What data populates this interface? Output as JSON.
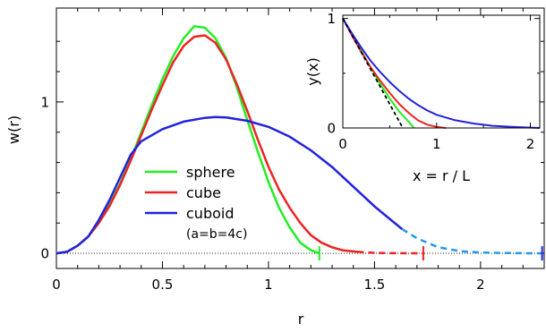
{
  "chart_data": [
    {
      "type": "line",
      "title": "",
      "xlabel": "r",
      "ylabel": "w(r)",
      "xlim": [
        0,
        2.3
      ],
      "ylim": [
        -0.1,
        1.62
      ],
      "x_ticks": [
        0,
        0.5,
        1,
        1.5,
        2
      ],
      "x_tick_labels": [
        "0",
        "0.5",
        "1",
        "1.5",
        "2"
      ],
      "y_ticks": [
        0,
        1
      ],
      "y_tick_labels": [
        "0",
        "1"
      ],
      "x_minor_ticks": [
        0.1,
        0.2,
        0.3,
        0.4,
        0.6,
        0.7,
        0.8,
        0.9,
        1.1,
        1.2,
        1.3,
        1.4,
        1.6,
        1.7,
        1.8,
        1.9,
        2.1,
        2.2
      ],
      "y_minor_ticks": [
        0.2,
        0.4,
        0.6,
        0.8,
        1.2,
        1.4
      ],
      "zero_line": "dotted",
      "legend_placement": "center",
      "legend_note": "(a=b=4c)",
      "series": [
        {
          "name": "sphere",
          "color": "#22ee22",
          "end_marker": 1.24,
          "points": [
            [
              0,
              0
            ],
            [
              0.05,
              0.01
            ],
            [
              0.1,
              0.05
            ],
            [
              0.15,
              0.11
            ],
            [
              0.2,
              0.2
            ],
            [
              0.25,
              0.32
            ],
            [
              0.3,
              0.46
            ],
            [
              0.35,
              0.62
            ],
            [
              0.4,
              0.8
            ],
            [
              0.45,
              0.98
            ],
            [
              0.5,
              1.15
            ],
            [
              0.55,
              1.3
            ],
            [
              0.6,
              1.42
            ],
            [
              0.65,
              1.5
            ],
            [
              0.7,
              1.49
            ],
            [
              0.75,
              1.42
            ],
            [
              0.8,
              1.29
            ],
            [
              0.85,
              1.1
            ],
            [
              0.9,
              0.88
            ],
            [
              0.95,
              0.67
            ],
            [
              1.0,
              0.47
            ],
            [
              1.05,
              0.3
            ],
            [
              1.1,
              0.17
            ],
            [
              1.15,
              0.07
            ],
            [
              1.2,
              0.02
            ],
            [
              1.24,
              0
            ]
          ]
        },
        {
          "name": "cube",
          "color": "#ee2222",
          "end_marker": 1.73,
          "dashed_from": 1.42,
          "points": [
            [
              0,
              0
            ],
            [
              0.05,
              0.01
            ],
            [
              0.1,
              0.05
            ],
            [
              0.15,
              0.11
            ],
            [
              0.2,
              0.2
            ],
            [
              0.25,
              0.31
            ],
            [
              0.3,
              0.45
            ],
            [
              0.35,
              0.61
            ],
            [
              0.4,
              0.78
            ],
            [
              0.45,
              0.95
            ],
            [
              0.5,
              1.11
            ],
            [
              0.55,
              1.26
            ],
            [
              0.6,
              1.37
            ],
            [
              0.65,
              1.43
            ],
            [
              0.7,
              1.44
            ],
            [
              0.75,
              1.39
            ],
            [
              0.8,
              1.28
            ],
            [
              0.85,
              1.12
            ],
            [
              0.9,
              0.94
            ],
            [
              0.95,
              0.75
            ],
            [
              1.0,
              0.57
            ],
            [
              1.05,
              0.42
            ],
            [
              1.1,
              0.3
            ],
            [
              1.15,
              0.2
            ],
            [
              1.2,
              0.12
            ],
            [
              1.25,
              0.07
            ],
            [
              1.3,
              0.04
            ],
            [
              1.35,
              0.02
            ],
            [
              1.42,
              0.01
            ],
            [
              1.5,
              0.003
            ],
            [
              1.6,
              0.001
            ],
            [
              1.73,
              0
            ]
          ]
        },
        {
          "name": "cuboid",
          "color": "#2222dd",
          "end_marker": 2.29,
          "dashed_from": 1.63,
          "dash_color": "#2299ee",
          "points": [
            [
              0,
              0
            ],
            [
              0.05,
              0.01
            ],
            [
              0.1,
              0.05
            ],
            [
              0.15,
              0.11
            ],
            [
              0.2,
              0.22
            ],
            [
              0.25,
              0.35
            ],
            [
              0.3,
              0.5
            ],
            [
              0.35,
              0.65
            ],
            [
              0.4,
              0.74
            ],
            [
              0.5,
              0.82
            ],
            [
              0.6,
              0.87
            ],
            [
              0.7,
              0.895
            ],
            [
              0.75,
              0.9
            ],
            [
              0.8,
              0.898
            ],
            [
              0.9,
              0.875
            ],
            [
              1.0,
              0.835
            ],
            [
              1.1,
              0.77
            ],
            [
              1.2,
              0.68
            ],
            [
              1.3,
              0.57
            ],
            [
              1.4,
              0.44
            ],
            [
              1.5,
              0.31
            ],
            [
              1.63,
              0.16
            ],
            [
              1.7,
              0.1
            ],
            [
              1.8,
              0.04
            ],
            [
              1.9,
              0.015
            ],
            [
              2.0,
              0.005
            ],
            [
              2.1,
              0.002
            ],
            [
              2.29,
              0
            ]
          ]
        }
      ]
    },
    {
      "type": "line",
      "title": "",
      "xlabel": "x = r / L",
      "ylabel": "y(x)",
      "xlim": [
        0,
        2.1
      ],
      "ylim": [
        0,
        1.03
      ],
      "x_ticks": [
        0,
        1,
        2
      ],
      "x_tick_labels": [
        "0",
        "1",
        "2"
      ],
      "y_ticks": [
        0,
        1
      ],
      "y_tick_labels": [
        "0",
        "1"
      ],
      "x_minor_ticks": [
        0.5,
        1.5
      ],
      "y_minor_ticks": [
        0.5
      ],
      "series": [
        {
          "color": "#22ee22",
          "points": [
            [
              0,
              1
            ],
            [
              0.1,
              0.85
            ],
            [
              0.2,
              0.7
            ],
            [
              0.3,
              0.55
            ],
            [
              0.4,
              0.4
            ],
            [
              0.5,
              0.27
            ],
            [
              0.6,
              0.15
            ],
            [
              0.7,
              0.06
            ],
            [
              0.76,
              0
            ]
          ]
        },
        {
          "color": "#ee2222",
          "points": [
            [
              0,
              1
            ],
            [
              0.1,
              0.84
            ],
            [
              0.2,
              0.69
            ],
            [
              0.3,
              0.55
            ],
            [
              0.4,
              0.43
            ],
            [
              0.5,
              0.32
            ],
            [
              0.6,
              0.22
            ],
            [
              0.7,
              0.14
            ],
            [
              0.8,
              0.07
            ],
            [
              0.9,
              0.03
            ],
            [
              1.0,
              0.01
            ],
            [
              1.1,
              0
            ]
          ]
        },
        {
          "color": "#2222dd",
          "points": [
            [
              0,
              1
            ],
            [
              0.1,
              0.86
            ],
            [
              0.2,
              0.73
            ],
            [
              0.3,
              0.61
            ],
            [
              0.4,
              0.51
            ],
            [
              0.5,
              0.42
            ],
            [
              0.6,
              0.34
            ],
            [
              0.7,
              0.27
            ],
            [
              0.8,
              0.21
            ],
            [
              0.9,
              0.16
            ],
            [
              1.0,
              0.12
            ],
            [
              1.2,
              0.07
            ],
            [
              1.4,
              0.04
            ],
            [
              1.6,
              0.02
            ],
            [
              1.8,
              0.01
            ],
            [
              2.1,
              0
            ]
          ]
        },
        {
          "color": "#000000",
          "dashed": true,
          "points": [
            [
              0,
              1
            ],
            [
              0.64,
              0
            ]
          ]
        }
      ]
    }
  ]
}
